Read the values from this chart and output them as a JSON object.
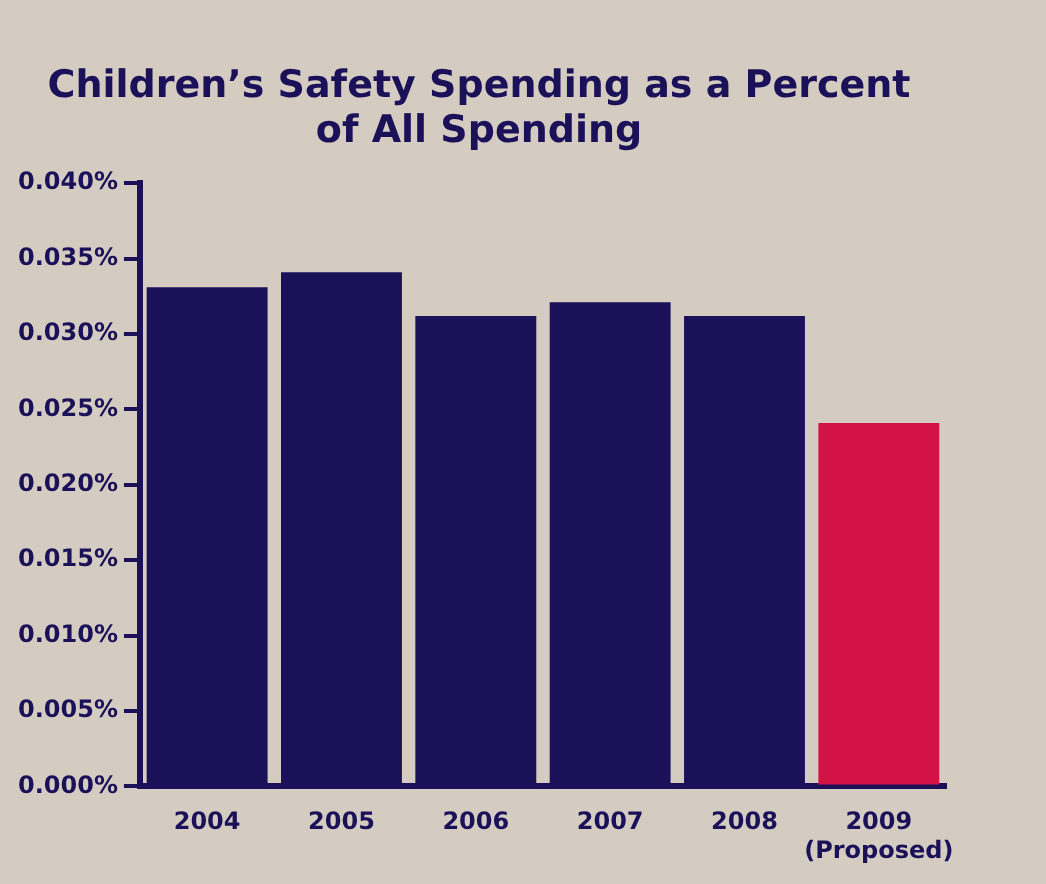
{
  "chart_data": {
    "type": "bar",
    "title": [
      "Children’s Safety Spending as a Percent",
      "of All Spending"
    ],
    "categories": [
      "2004",
      "2005",
      "2006",
      "2007",
      "2008",
      "2009\n(Proposed)"
    ],
    "values": [
      0.0331,
      0.0341,
      0.0312,
      0.0321,
      0.0312,
      0.0241
    ],
    "colors": [
      "#1b1159",
      "#1b1159",
      "#1b1159",
      "#1b1159",
      "#1b1159",
      "#d31345"
    ],
    "ylim": [
      0,
      0.04
    ],
    "yticks": [
      {
        "value": 0,
        "label": "0.000%"
      },
      {
        "value": 0.005,
        "label": "0.005%"
      },
      {
        "value": 0.01,
        "label": "0.010%"
      },
      {
        "value": 0.015,
        "label": "0.015%"
      },
      {
        "value": 0.02,
        "label": "0.020%"
      },
      {
        "value": 0.025,
        "label": "0.025%"
      },
      {
        "value": 0.03,
        "label": "0.030%"
      },
      {
        "value": 0.035,
        "label": "0.035%"
      },
      {
        "value": 0.04,
        "label": "0.040%"
      }
    ],
    "grid": false,
    "legend": false
  }
}
